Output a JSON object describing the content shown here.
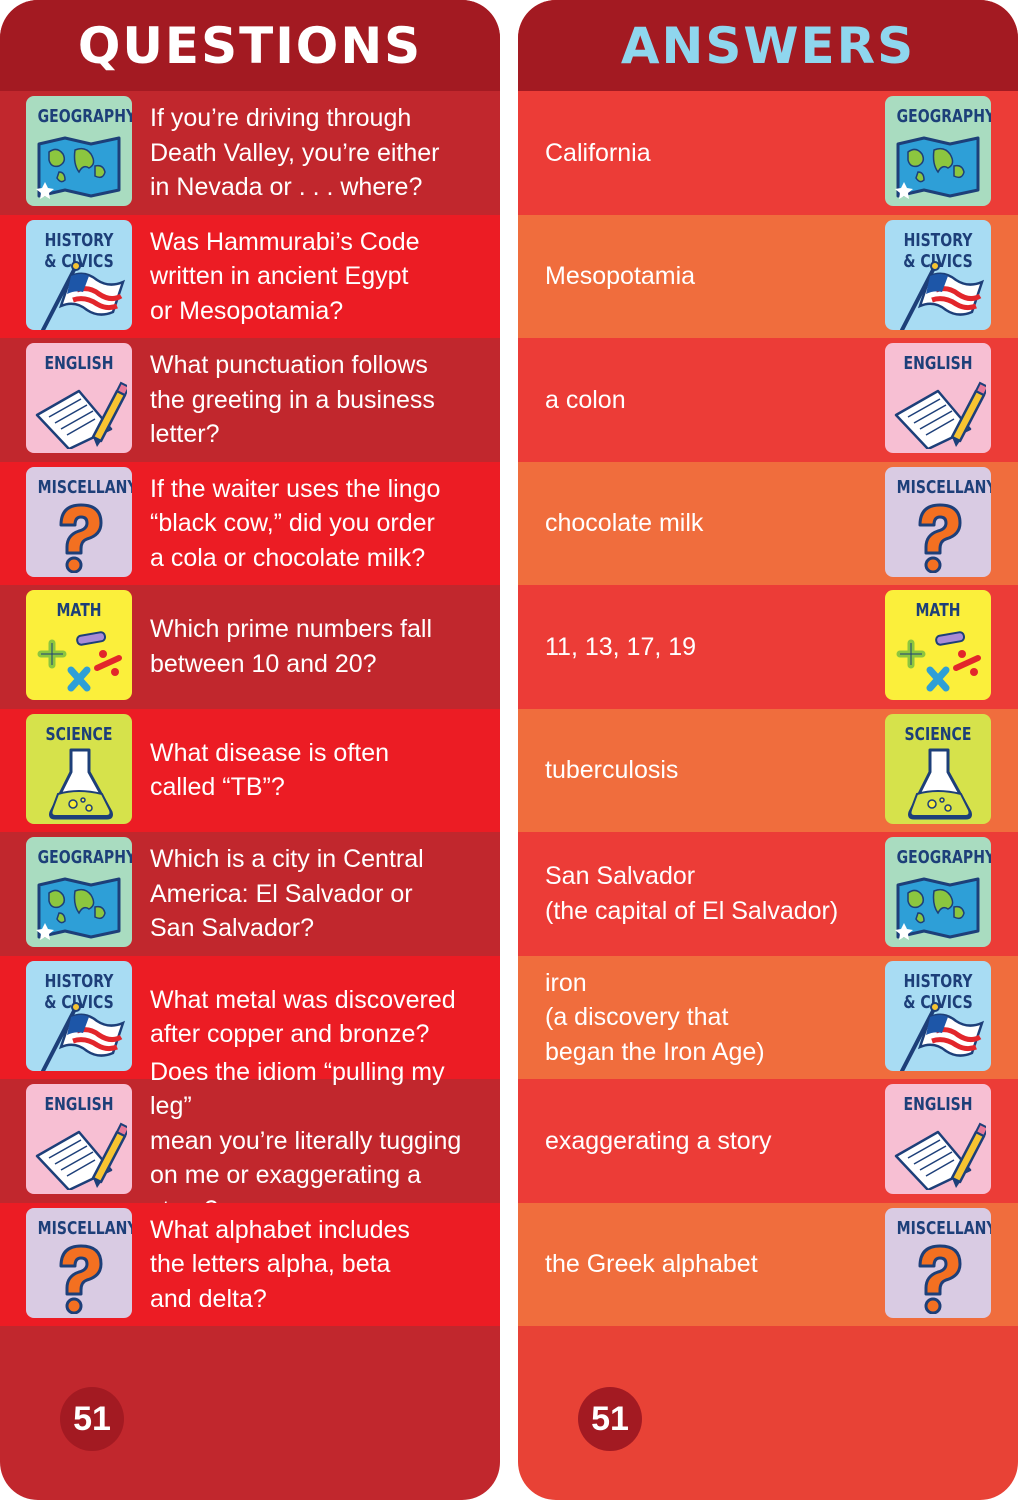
{
  "questions_card": {
    "title": "QUESTIONS",
    "page_number": "51",
    "rows": [
      {
        "category": "GEOGRAPHY",
        "text": "If you’re driving through\nDeath Valley, you’re either\nin Nevada or . . . where?"
      },
      {
        "category": "HISTORY\n& CIVICS",
        "text": "Was Hammurabi’s Code\nwritten in ancient Egypt\nor Mesopotamia?"
      },
      {
        "category": "ENGLISH",
        "text": "What punctuation follows\nthe greeting in a business\nletter?"
      },
      {
        "category": "MISCELLANY",
        "text": "If the waiter uses the lingo\n“black cow,” did you order\na cola or chocolate milk?"
      },
      {
        "category": "MATH",
        "text": "Which prime numbers fall\nbetween 10 and 20?"
      },
      {
        "category": "SCIENCE",
        "text": "What disease is often\ncalled “TB”?"
      },
      {
        "category": "GEOGRAPHY",
        "text": "Which is a city in Central\nAmerica: El Salvador or\nSan Salvador?"
      },
      {
        "category": "HISTORY\n& CIVICS",
        "text": "What metal was discovered\nafter copper and bronze?"
      },
      {
        "category": "ENGLISH",
        "text": "Does the idiom “pulling my leg”\nmean you’re literally tugging\non me or exaggerating a story?"
      },
      {
        "category": "MISCELLANY",
        "text": "What alphabet includes\nthe letters alpha, beta\nand delta?"
      }
    ]
  },
  "answers_card": {
    "title": "ANSWERS",
    "page_number": "51",
    "rows": [
      {
        "category": "GEOGRAPHY",
        "text": "California"
      },
      {
        "category": "HISTORY\n& CIVICS",
        "text": "Mesopotamia"
      },
      {
        "category": "ENGLISH",
        "text": "a colon"
      },
      {
        "category": "MISCELLANY",
        "text": "chocolate milk"
      },
      {
        "category": "MATH",
        "text": "11, 13, 17, 19"
      },
      {
        "category": "SCIENCE",
        "text": "tuberculosis"
      },
      {
        "category": "GEOGRAPHY",
        "text": "San Salvador\n(the capital of El Salvador)"
      },
      {
        "category": "HISTORY\n& CIVICS",
        "text": "iron\n(a discovery that\nbegan the Iron Age)"
      },
      {
        "category": "ENGLISH",
        "text": "exaggerating a story"
      },
      {
        "category": "MISCELLANY",
        "text": "the Greek alphabet"
      }
    ]
  },
  "category_styles": {
    "GEOGRAPHY": {
      "color": "#a9dcc0",
      "icon": "map-icon"
    },
    "HISTORY": {
      "color": "#a8dcf3",
      "icon": "flag-icon"
    },
    "ENGLISH": {
      "color": "#f7bfd3",
      "icon": "pencil-paper-icon"
    },
    "MISCELLANY": {
      "color": "#d9cbe3",
      "icon": "question-mark-icon"
    },
    "MATH": {
      "color": "#fbef3b",
      "icon": "math-symbols-icon"
    },
    "SCIENCE": {
      "color": "#d6e24b",
      "icon": "flask-icon"
    }
  }
}
